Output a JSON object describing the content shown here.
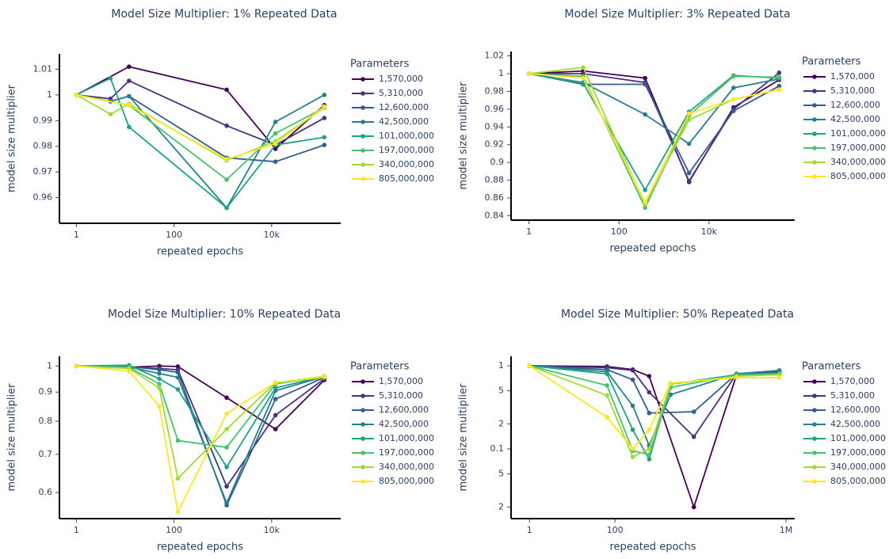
{
  "chart_data": [
    {
      "type": "line",
      "title": "Model Size Multiplier: 1% Repeated Data",
      "x_label": "repeated epochs",
      "y_label": "model size multiplier",
      "legend_title": "Parameters",
      "xlog": true,
      "ylog": false,
      "xlim": [
        0.45,
        260000
      ],
      "ylim": [
        0.95,
        1.016
      ],
      "xticks": [
        1,
        100,
        {
          "value": 10000,
          "label": "10k"
        }
      ],
      "yticks": [
        0.96,
        0.97,
        0.98,
        0.99,
        1,
        1.01
      ],
      "series": [
        {
          "name": "1,570,000",
          "color": "#440154",
          "x": [
            1,
            12,
            1200,
            12000,
            120000
          ],
          "values": [
            1,
            1.011,
            1.002,
            0.979,
            0.996
          ]
        },
        {
          "name": "5,310,000",
          "color": "#46327e",
          "x": [
            1,
            5,
            12,
            1200,
            12000,
            120000
          ],
          "values": [
            1,
            0.9985,
            1.0055,
            0.988,
            0.9805,
            0.991
          ]
        },
        {
          "name": "12,600,000",
          "color": "#365c8d",
          "x": [
            1,
            5,
            12,
            1200,
            12000,
            120000
          ],
          "values": [
            1,
            0.9975,
            0.9995,
            0.9755,
            0.974,
            0.9805
          ]
        },
        {
          "name": "42,500,000",
          "color": "#277f8e",
          "x": [
            1,
            5,
            12,
            1200,
            12000,
            120000
          ],
          "values": [
            1,
            0.9975,
            0.9995,
            0.956,
            0.9895,
            1
          ]
        },
        {
          "name": "101,000,000",
          "color": "#1fa187",
          "x": [
            1,
            5,
            12,
            1200,
            12000,
            120000
          ],
          "values": [
            1,
            1.0065,
            0.9875,
            0.956,
            0.9805,
            0.9835
          ]
        },
        {
          "name": "197,000,000",
          "color": "#4ac16d",
          "x": [
            1,
            12,
            1200,
            12000,
            120000
          ],
          "values": [
            1,
            0.996,
            0.967,
            0.985,
            0.995
          ]
        },
        {
          "name": "340,000,000",
          "color": "#a0da39",
          "x": [
            1,
            5,
            12,
            1200,
            12000,
            120000
          ],
          "values": [
            1,
            0.9925,
            0.9965,
            0.9745,
            0.982,
            0.995
          ]
        },
        {
          "name": "805,000,000",
          "color": "#fde725",
          "x": [
            1,
            12,
            1200,
            12000,
            120000
          ],
          "values": [
            1,
            0.996,
            0.975,
            0.981,
            0.9955
          ]
        }
      ]
    },
    {
      "type": "line",
      "title": "Model Size Multiplier: 3% Repeated Data",
      "x_label": "repeated epochs",
      "y_label": "model size multiplier",
      "legend_title": "Parameters",
      "xlog": true,
      "ylog": false,
      "xlim": [
        0.4,
        800000
      ],
      "ylim": [
        0.835,
        1.025
      ],
      "xticks": [
        1,
        100,
        {
          "value": 10000,
          "label": "10k"
        }
      ],
      "yticks": [
        0.84,
        0.86,
        0.88,
        0.9,
        0.92,
        0.94,
        0.96,
        0.98,
        1,
        1.02
      ],
      "series": [
        {
          "name": "1,570,000",
          "color": "#440154",
          "x": [
            1,
            16,
            380,
            3600,
            35000,
            360000
          ],
          "values": [
            1,
            1.003,
            0.995,
            0.878,
            0.962,
            0.993
          ]
        },
        {
          "name": "5,310,000",
          "color": "#46327e",
          "x": [
            1,
            16,
            380,
            3600,
            35000,
            360000
          ],
          "values": [
            1,
            1,
            0.99,
            0.879,
            0.96,
            1.001
          ]
        },
        {
          "name": "12,600,000",
          "color": "#365c8d",
          "x": [
            1,
            16,
            380,
            3600,
            35000,
            360000
          ],
          "values": [
            1,
            0.988,
            0.988,
            0.888,
            0.958,
            0.986
          ]
        },
        {
          "name": "42,500,000",
          "color": "#277f8e",
          "x": [
            1,
            16,
            380,
            3600,
            35000,
            360000
          ],
          "values": [
            1,
            0.99,
            0.954,
            0.921,
            0.984,
            0.994
          ]
        },
        {
          "name": "101,000,000",
          "color": "#1fa187",
          "x": [
            1,
            16,
            380,
            3600,
            35000,
            360000
          ],
          "values": [
            1,
            0.989,
            0.869,
            0.957,
            0.998,
            0.995
          ]
        },
        {
          "name": "197,000,000",
          "color": "#4ac16d",
          "x": [
            1,
            16,
            380,
            3600,
            35000,
            360000
          ],
          "values": [
            1,
            0.997,
            0.849,
            0.953,
            0.997,
            0.996
          ]
        },
        {
          "name": "340,000,000",
          "color": "#a0da39",
          "x": [
            1,
            16,
            380,
            3600,
            35000,
            360000
          ],
          "values": [
            1,
            1.007,
            0.853,
            0.948,
            0.971,
            0.982
          ]
        },
        {
          "name": "805,000,000",
          "color": "#fde725",
          "x": [
            1,
            16,
            380,
            3600,
            35000,
            360000
          ],
          "values": [
            1,
            0.995,
            0.855,
            0.955,
            0.971,
            0.982
          ]
        }
      ]
    },
    {
      "type": "line",
      "title": "Model Size Multiplier: 10% Repeated Data",
      "x_label": "repeated epochs",
      "y_label": "model size multiplier",
      "legend_title": "Parameters",
      "xlog": true,
      "ylog": true,
      "xlim": [
        0.45,
        260000
      ],
      "ylim": [
        0.54,
        1.04
      ],
      "xticks": [
        1,
        100,
        {
          "value": 10000,
          "label": "10k"
        }
      ],
      "yticks": [
        0.6,
        0.7,
        0.8,
        0.9,
        1
      ],
      "series": [
        {
          "name": "1,570,000",
          "color": "#440154",
          "x": [
            1,
            12,
            50,
            120,
            1200,
            12000,
            120000
          ],
          "values": [
            1,
            0.995,
            1,
            0.998,
            0.88,
            0.775,
            0.945
          ]
        },
        {
          "name": "5,310,000",
          "color": "#46327e",
          "x": [
            1,
            12,
            50,
            120,
            1200,
            12000,
            120000
          ],
          "values": [
            1,
            0.996,
            0.99,
            0.985,
            0.615,
            0.82,
            0.95
          ]
        },
        {
          "name": "12,600,000",
          "color": "#365c8d",
          "x": [
            1,
            12,
            50,
            120,
            1200,
            12000,
            120000
          ],
          "values": [
            1,
            0.998,
            0.985,
            0.975,
            0.57,
            0.875,
            0.955
          ]
        },
        {
          "name": "42,500,000",
          "color": "#277f8e",
          "x": [
            1,
            12,
            50,
            120,
            1200,
            12000,
            120000
          ],
          "values": [
            1,
            0.996,
            0.97,
            0.955,
            0.575,
            0.905,
            0.958
          ]
        },
        {
          "name": "101,000,000",
          "color": "#1fa187",
          "x": [
            1,
            12,
            50,
            120,
            1200,
            12000,
            120000
          ],
          "values": [
            1,
            1.003,
            0.95,
            0.91,
            0.665,
            0.915,
            0.96
          ]
        },
        {
          "name": "197,000,000",
          "color": "#4ac16d",
          "x": [
            1,
            12,
            50,
            120,
            1200,
            12000,
            120000
          ],
          "values": [
            1,
            0.995,
            0.93,
            0.74,
            0.72,
            0.93,
            0.96
          ]
        },
        {
          "name": "340,000,000",
          "color": "#a0da39",
          "x": [
            1,
            12,
            50,
            120,
            1200,
            12000,
            120000
          ],
          "values": [
            1,
            0.99,
            0.915,
            0.635,
            0.775,
            0.935,
            0.955
          ]
        },
        {
          "name": "805,000,000",
          "color": "#fde725",
          "x": [
            1,
            12,
            50,
            120,
            1200,
            12000,
            120000
          ],
          "values": [
            1,
            0.98,
            0.85,
            0.555,
            0.825,
            0.935,
            0.96
          ]
        }
      ]
    },
    {
      "type": "line",
      "title": "Model Size Multiplier: 50% Repeated Data",
      "x_label": "repeated epochs",
      "y_label": "model size multiplier",
      "legend_title": "Parameters",
      "xlog": true,
      "ylog": true,
      "xlim": [
        0.37,
        1600000
      ],
      "ylim": [
        0.0145,
        1.3
      ],
      "xticks": [
        1,
        100,
        {
          "value": 1000000,
          "label": "1M"
        }
      ],
      "yticks": [
        {
          "value": 0.02,
          "label": "2"
        },
        {
          "value": 0.05,
          "label": "5"
        },
        0.1,
        {
          "value": 0.2,
          "label": "2"
        },
        {
          "value": 0.5,
          "label": "5"
        },
        1
      ],
      "series": [
        {
          "name": "1,570,000",
          "color": "#440154",
          "x": [
            1,
            65,
            260,
            630,
            7000,
            70000,
            700000
          ],
          "values": [
            1,
            0.98,
            0.9,
            0.75,
            0.02,
            0.78,
            0.84
          ]
        },
        {
          "name": "5,310,000",
          "color": "#46327e",
          "x": [
            1,
            65,
            260,
            630,
            7000,
            70000,
            700000
          ],
          "values": [
            1,
            0.95,
            0.88,
            0.48,
            0.14,
            0.8,
            0.86
          ]
        },
        {
          "name": "12,600,000",
          "color": "#365c8d",
          "x": [
            1,
            65,
            260,
            630,
            7000,
            70000,
            700000
          ],
          "values": [
            1,
            0.9,
            0.68,
            0.27,
            0.28,
            0.8,
            0.86
          ]
        },
        {
          "name": "42,500,000",
          "color": "#277f8e",
          "x": [
            1,
            65,
            260,
            630,
            2000,
            70000,
            700000
          ],
          "values": [
            1,
            0.85,
            0.33,
            0.11,
            0.45,
            0.8,
            0.88
          ]
        },
        {
          "name": "101,000,000",
          "color": "#1fa187",
          "x": [
            1,
            65,
            260,
            630,
            2000,
            70000,
            700000
          ],
          "values": [
            1,
            0.8,
            0.17,
            0.075,
            0.6,
            0.78,
            0.82
          ]
        },
        {
          "name": "197,000,000",
          "color": "#4ac16d",
          "x": [
            1,
            65,
            260,
            630,
            2000,
            70000,
            700000
          ],
          "values": [
            1,
            0.58,
            0.095,
            0.085,
            0.55,
            0.77,
            0.8
          ]
        },
        {
          "name": "340,000,000",
          "color": "#a0da39",
          "x": [
            1,
            65,
            260,
            630,
            2000,
            70000,
            700000
          ],
          "values": [
            1,
            0.44,
            0.08,
            0.1,
            0.6,
            0.75,
            0.78
          ]
        },
        {
          "name": "805,000,000",
          "color": "#fde725",
          "x": [
            1,
            65,
            260,
            630,
            2000,
            70000,
            700000
          ],
          "values": [
            1,
            0.24,
            0.1,
            0.17,
            0.62,
            0.72,
            0.72
          ]
        }
      ]
    }
  ]
}
